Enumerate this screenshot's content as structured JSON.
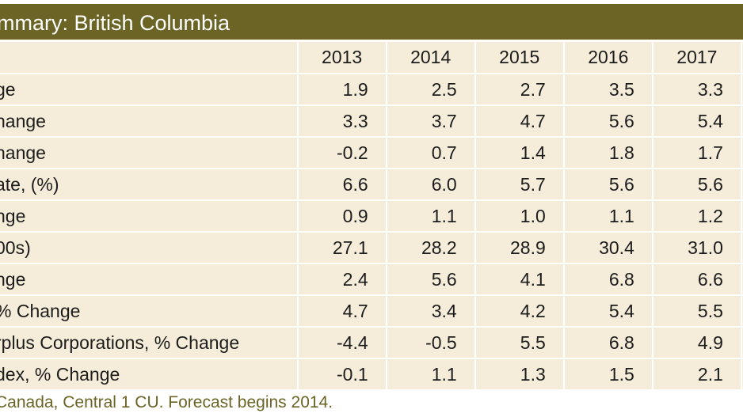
{
  "title": "mmary: British Columbia",
  "columns": [
    "2013",
    "2014",
    "2015",
    "2016",
    "2017"
  ],
  "rows": [
    {
      "label": "ge",
      "values": [
        "1.9",
        "2.5",
        "2.7",
        "3.5",
        "3.3"
      ]
    },
    {
      "label": "hange",
      "values": [
        "3.3",
        "3.7",
        "4.7",
        "5.6",
        "5.4"
      ]
    },
    {
      "label": "hange",
      "values": [
        "-0.2",
        "0.7",
        "1.4",
        "1.8",
        "1.7"
      ]
    },
    {
      "label": "ate, (%)",
      "values": [
        "6.6",
        "6.0",
        "5.7",
        "5.6",
        "5.6"
      ]
    },
    {
      "label": "nge",
      "values": [
        "0.9",
        "1.1",
        "1.0",
        "1.1",
        "1.2"
      ]
    },
    {
      "label": "00s)",
      "values": [
        "27.1",
        "28.2",
        "28.9",
        "30.4",
        "31.0"
      ]
    },
    {
      "label": "nge",
      "values": [
        "2.4",
        "5.6",
        "4.1",
        "6.8",
        "6.6"
      ]
    },
    {
      "label": "% Change",
      "values": [
        "4.7",
        "3.4",
        "4.2",
        "5.4",
        "5.5"
      ]
    },
    {
      "label": "rplus Corporations, % Change",
      "values": [
        "-4.4",
        "-0.5",
        "5.5",
        "6.8",
        "4.9"
      ]
    },
    {
      "label": "dex, % Change",
      "values": [
        "-0.1",
        "1.1",
        "1.3",
        "1.5",
        "2.1"
      ]
    }
  ],
  "source_note": "Canada, Central 1 CU. Forecast begins 2014.",
  "colors": {
    "header_bar": "#6b6425",
    "table_bg": "#f5edd9",
    "grid": "#ffffff",
    "source_text": "#6b6425"
  }
}
